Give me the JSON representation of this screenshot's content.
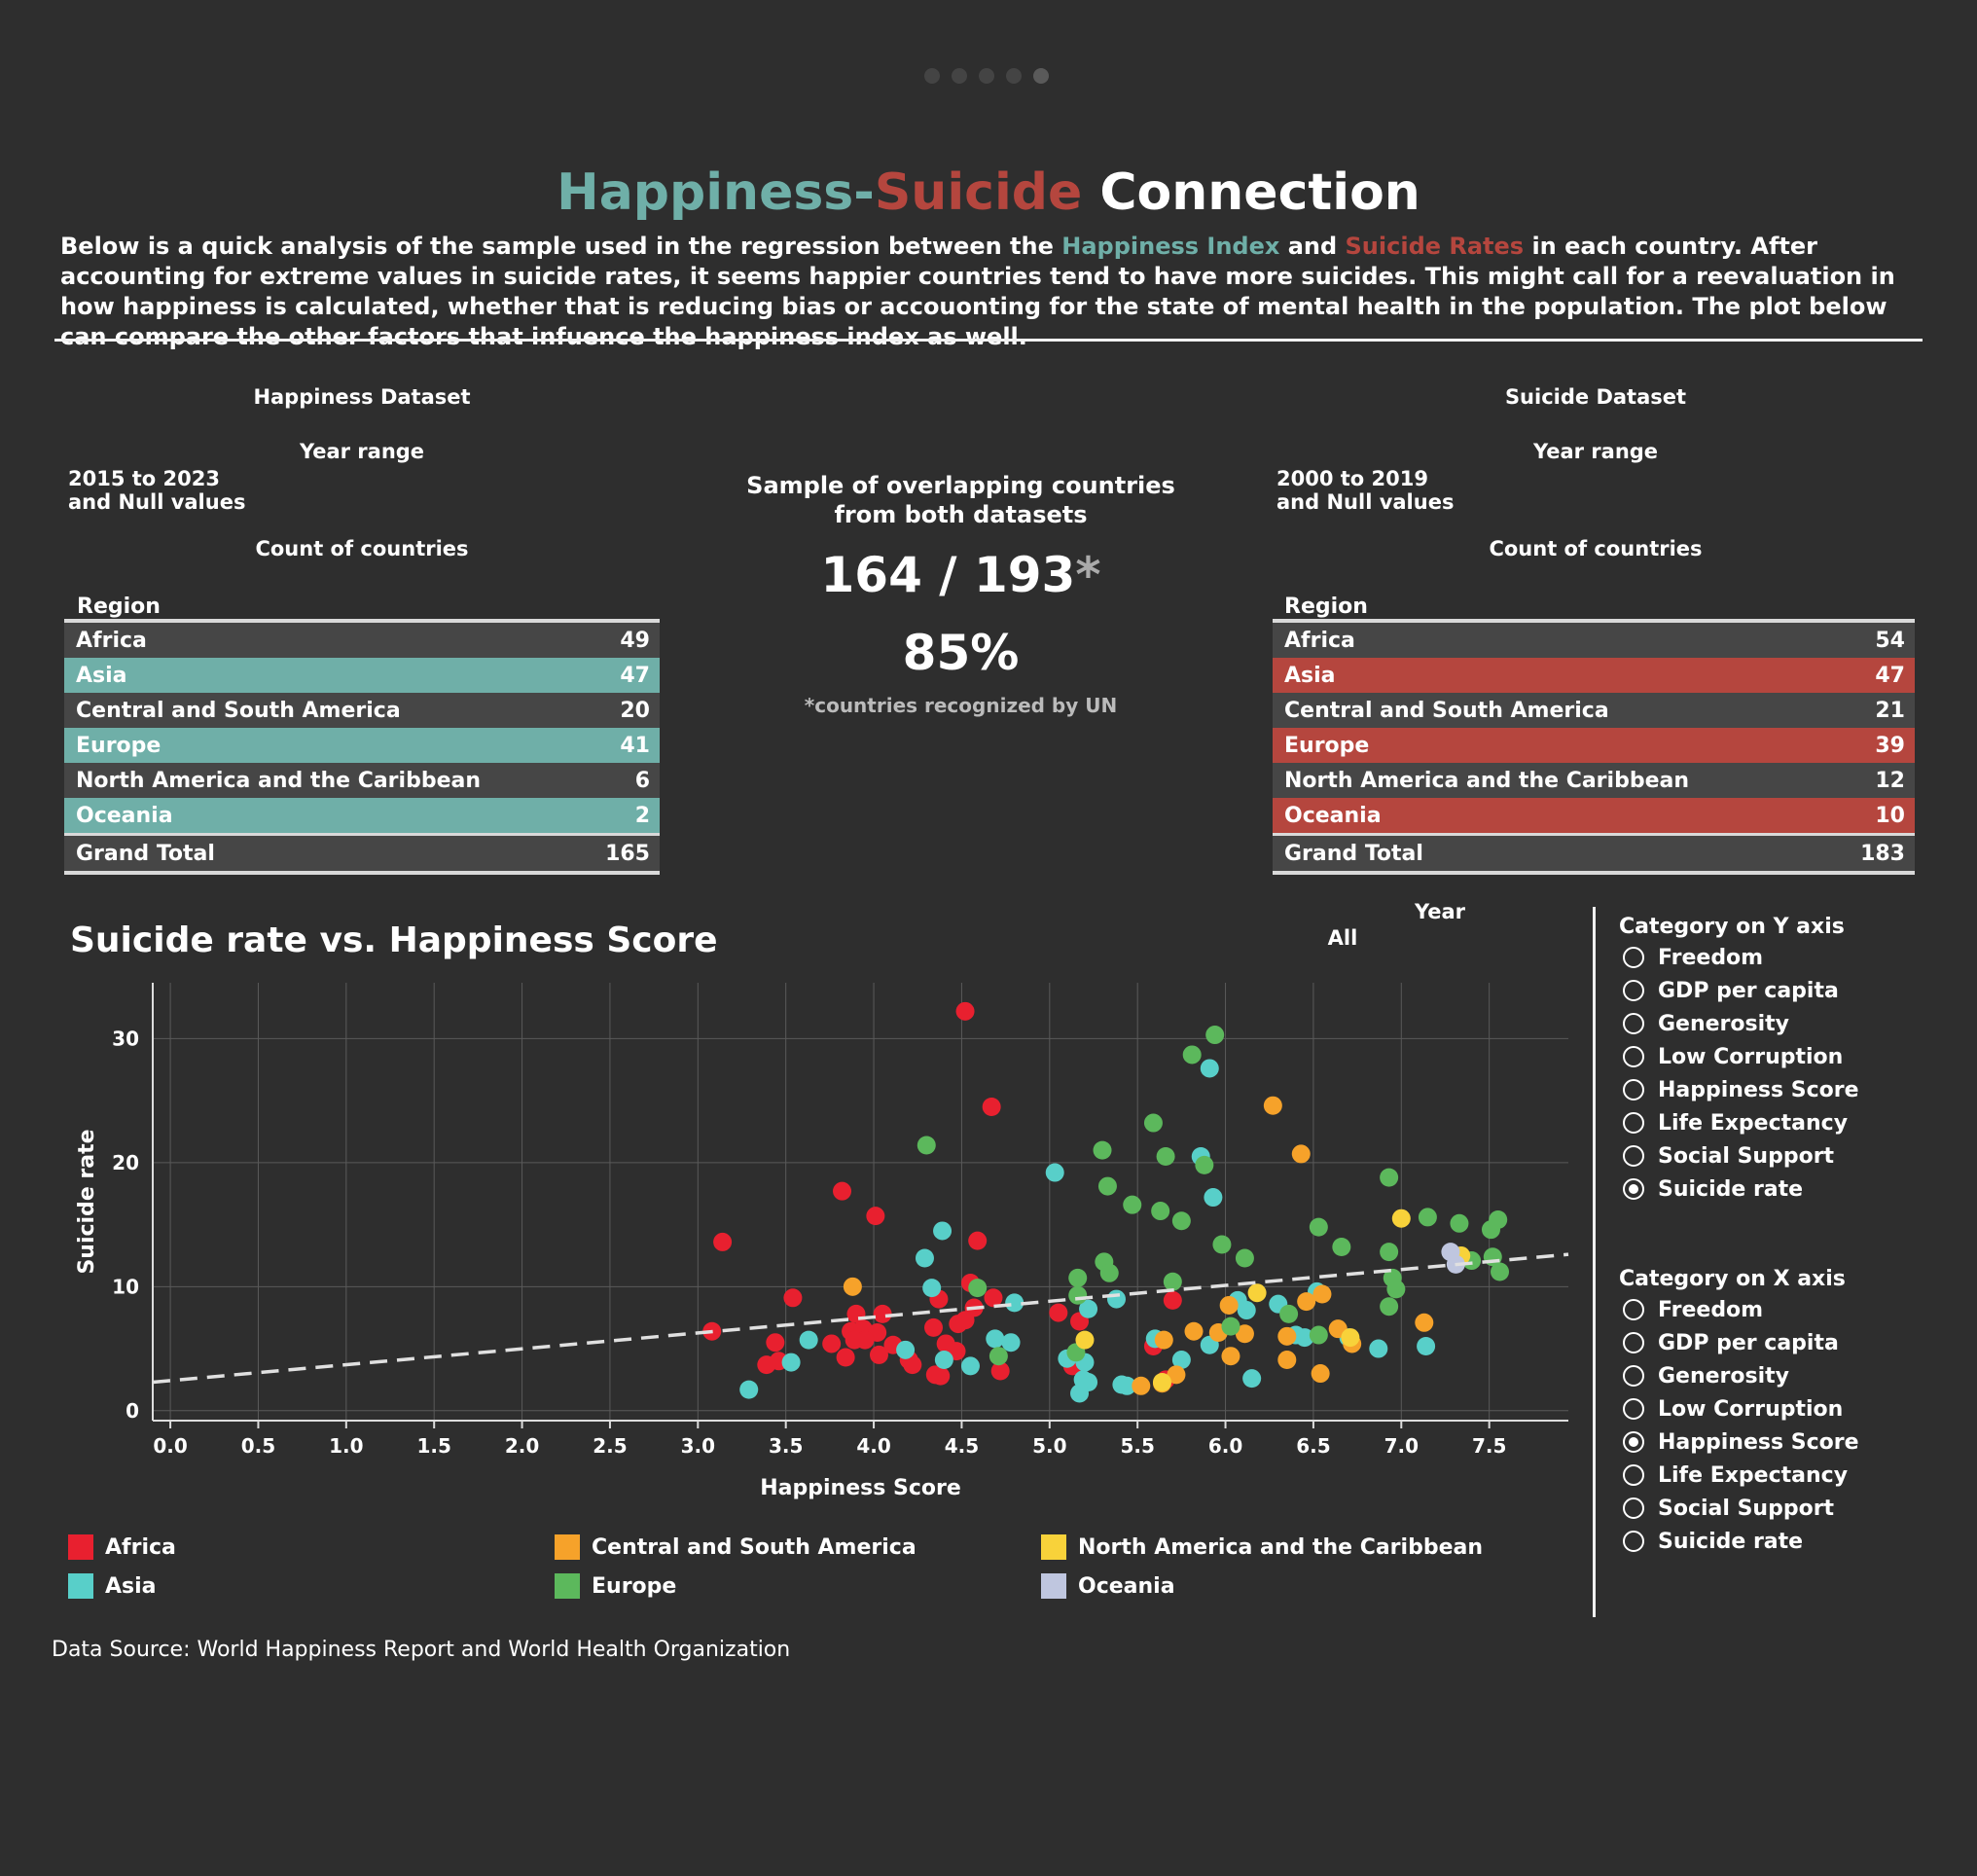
{
  "pager": {
    "count": 5,
    "active_index": 4
  },
  "header": {
    "title_part1": "Happiness",
    "title_sep": "-",
    "title_part2": "Suicide",
    "title_part3": " Connection",
    "intro_pre": "Below is a quick analysis of the sample used in the regression between the ",
    "intro_hl1": "Happiness Index",
    "intro_mid": " and ",
    "intro_hl2": "Suicide Rates",
    "intro_post": " in each country. After accounting for extreme values in suicide rates, it seems happier countries tend to have more suicides. This might call for a reevaluation in how happiness is calculated, whether that is reducing bias or accouonting for the state of mental health in the population. The plot below can compare the other factors that infuence the happiness index as well."
  },
  "colors": {
    "background": "#2e2e2e",
    "happiness_teal": "#6fafa8",
    "suicide_red": "#b5463e",
    "Africa": "#e8202f",
    "Asia": "#58cfc9",
    "Central and South America": "#f6a22a",
    "Europe": "#5cb85c",
    "North America and the Caribbean": "#f8d23a",
    "Oceania": "#bfc6df"
  },
  "happiness_panel": {
    "title": "Happiness Dataset",
    "year_range_label": "Year range",
    "year_range_line1": "2015 to 2023",
    "year_range_line2": "and Null values",
    "count_label": "Count of countries",
    "region_header": "Region",
    "rows": [
      {
        "region": "Africa",
        "count": "49"
      },
      {
        "region": "Asia",
        "count": "47"
      },
      {
        "region": "Central and South America",
        "count": "20"
      },
      {
        "region": "Europe",
        "count": "41"
      },
      {
        "region": "North America and the Caribbean",
        "count": "6"
      },
      {
        "region": "Oceania",
        "count": "2"
      }
    ],
    "total_label": "Grand Total",
    "total": "165"
  },
  "suicide_panel": {
    "title": "Suicide Dataset",
    "year_range_label": "Year range",
    "year_range_line1": "2000 to 2019",
    "year_range_line2": "and Null values",
    "count_label": "Count of countries",
    "region_header": "Region",
    "rows": [
      {
        "region": "Africa",
        "count": "54"
      },
      {
        "region": "Asia",
        "count": "47"
      },
      {
        "region": "Central and South America",
        "count": "21"
      },
      {
        "region": "Europe",
        "count": "39"
      },
      {
        "region": "North America and the Caribbean",
        "count": "12"
      },
      {
        "region": "Oceania",
        "count": "10"
      }
    ],
    "total_label": "Grand Total",
    "total": "183"
  },
  "overlap": {
    "title_line1": "Sample of overlapping countries",
    "title_line2": "from both datasets",
    "ratio": "164 / 193",
    "ratio_star": "*",
    "percent": "85%",
    "footnote": "*countries recognized by UN"
  },
  "filters": {
    "year_label": "Year",
    "year_value": "All"
  },
  "y_axis_selector": {
    "title": "Category on Y axis",
    "options": [
      "Freedom",
      "GDP per capita",
      "Generosity",
      "Low Corruption",
      "Happiness Score",
      "Life Expectancy",
      "Social Support",
      "Suicide rate"
    ],
    "selected": "Suicide rate"
  },
  "x_axis_selector": {
    "title": "Category on X axis",
    "options": [
      "Freedom",
      "GDP per capita",
      "Generosity",
      "Low Corruption",
      "Happiness Score",
      "Life Expectancy",
      "Social Support",
      "Suicide rate"
    ],
    "selected": "Happiness Score"
  },
  "legend": [
    "Africa",
    "Central and South America",
    "North America and the Caribbean",
    "Asia",
    "Europe",
    "Oceania"
  ],
  "source": "Data Source: World Happiness Report and World Health Organization",
  "chart_data": {
    "type": "scatter",
    "title": "Suicide rate vs. Happiness Score",
    "xlabel": "Happiness Score",
    "ylabel": "Suicide rate",
    "xlim": [
      -0.1,
      7.95
    ],
    "ylim": [
      -0.8,
      34.5
    ],
    "x_ticks": [
      "0.0",
      "0.5",
      "1.0",
      "1.5",
      "2.0",
      "2.5",
      "3.0",
      "3.5",
      "4.0",
      "4.5",
      "5.0",
      "5.5",
      "6.0",
      "6.5",
      "7.0",
      "7.5"
    ],
    "y_ticks": [
      "0",
      "10",
      "20",
      "30"
    ],
    "grid": true,
    "trendline": {
      "x": [
        -0.1,
        7.95
      ],
      "y": [
        2.3,
        12.6
      ]
    },
    "series": [
      {
        "name": "Africa",
        "points": [
          [
            4.52,
            32.2
          ],
          [
            4.67,
            24.5
          ],
          [
            3.82,
            17.7
          ],
          [
            4.01,
            15.7
          ],
          [
            3.14,
            13.6
          ],
          [
            4.59,
            13.7
          ],
          [
            4.55,
            10.3
          ],
          [
            3.54,
            9.1
          ],
          [
            4.37,
            9.0
          ],
          [
            4.68,
            9.1
          ],
          [
            4.57,
            8.3
          ],
          [
            4.05,
            7.8
          ],
          [
            3.9,
            7.8
          ],
          [
            5.05,
            7.9
          ],
          [
            5.17,
            7.2
          ],
          [
            3.08,
            6.4
          ],
          [
            3.87,
            6.4
          ],
          [
            3.94,
            6.6
          ],
          [
            4.02,
            6.3
          ],
          [
            4.34,
            6.7
          ],
          [
            4.48,
            7.0
          ],
          [
            4.52,
            7.3
          ],
          [
            3.76,
            5.4
          ],
          [
            3.95,
            5.7
          ],
          [
            4.11,
            5.3
          ],
          [
            3.44,
            5.5
          ],
          [
            4.41,
            5.4
          ],
          [
            4.47,
            4.8
          ],
          [
            5.59,
            5.2
          ],
          [
            3.84,
            4.3
          ],
          [
            4.03,
            4.5
          ],
          [
            4.2,
            4.1
          ],
          [
            3.46,
            4.0
          ],
          [
            3.39,
            3.7
          ],
          [
            4.22,
            3.7
          ],
          [
            5.13,
            3.6
          ],
          [
            4.35,
            2.9
          ],
          [
            4.38,
            2.8
          ],
          [
            4.72,
            3.2
          ],
          [
            5.66,
            2.5
          ],
          [
            5.7,
            8.9
          ],
          [
            3.89,
            5.7
          ]
        ]
      },
      {
        "name": "Asia",
        "points": [
          [
            5.91,
            27.6
          ],
          [
            5.03,
            19.2
          ],
          [
            5.86,
            20.5
          ],
          [
            5.93,
            17.2
          ],
          [
            4.39,
            14.5
          ],
          [
            4.29,
            12.3
          ],
          [
            4.33,
            9.9
          ],
          [
            4.8,
            8.7
          ],
          [
            5.38,
            9.0
          ],
          [
            5.22,
            8.2
          ],
          [
            4.18,
            4.9
          ],
          [
            4.4,
            4.1
          ],
          [
            4.55,
            3.6
          ],
          [
            4.69,
            5.8
          ],
          [
            4.78,
            5.5
          ],
          [
            3.63,
            5.7
          ],
          [
            3.53,
            3.9
          ],
          [
            3.29,
            1.7
          ],
          [
            5.1,
            4.2
          ],
          [
            5.2,
            3.9
          ],
          [
            5.22,
            2.3
          ],
          [
            5.17,
            1.4
          ],
          [
            5.41,
            2.1
          ],
          [
            5.44,
            2.0
          ],
          [
            5.6,
            5.8
          ],
          [
            5.75,
            4.1
          ],
          [
            5.91,
            5.3
          ],
          [
            6.07,
            8.9
          ],
          [
            6.12,
            8.1
          ],
          [
            6.15,
            2.6
          ],
          [
            6.3,
            8.6
          ],
          [
            6.4,
            6.1
          ],
          [
            6.45,
            5.9
          ],
          [
            6.52,
            9.6
          ],
          [
            6.87,
            5.0
          ],
          [
            7.14,
            5.2
          ],
          [
            6.7,
            5.9
          ],
          [
            5.19,
            2.5
          ]
        ]
      },
      {
        "name": "Central and South America",
        "points": [
          [
            6.27,
            24.6
          ],
          [
            6.43,
            20.7
          ],
          [
            3.88,
            10.0
          ],
          [
            6.02,
            8.5
          ],
          [
            5.65,
            5.7
          ],
          [
            5.82,
            6.4
          ],
          [
            5.96,
            6.3
          ],
          [
            6.11,
            6.2
          ],
          [
            6.35,
            6.0
          ],
          [
            6.46,
            8.8
          ],
          [
            6.64,
            6.6
          ],
          [
            6.72,
            5.4
          ],
          [
            6.03,
            4.4
          ],
          [
            6.35,
            4.1
          ],
          [
            5.52,
            2.0
          ],
          [
            5.72,
            2.9
          ],
          [
            6.54,
            3.0
          ],
          [
            7.13,
            7.1
          ],
          [
            5.64,
            2.2
          ],
          [
            6.55,
            9.4
          ]
        ]
      },
      {
        "name": "Europe",
        "points": [
          [
            5.94,
            30.3
          ],
          [
            5.81,
            28.7
          ],
          [
            5.59,
            23.2
          ],
          [
            4.3,
            21.4
          ],
          [
            5.3,
            21.0
          ],
          [
            5.66,
            20.5
          ],
          [
            5.88,
            19.8
          ],
          [
            6.93,
            18.8
          ],
          [
            5.33,
            18.1
          ],
          [
            5.47,
            16.6
          ],
          [
            5.63,
            16.1
          ],
          [
            5.75,
            15.3
          ],
          [
            7.15,
            15.6
          ],
          [
            7.33,
            15.1
          ],
          [
            7.55,
            15.4
          ],
          [
            7.51,
            14.6
          ],
          [
            6.53,
            14.8
          ],
          [
            5.98,
            13.4
          ],
          [
            6.66,
            13.2
          ],
          [
            6.11,
            12.3
          ],
          [
            5.31,
            12.0
          ],
          [
            5.34,
            11.1
          ],
          [
            7.4,
            12.1
          ],
          [
            7.52,
            12.4
          ],
          [
            7.56,
            11.2
          ],
          [
            6.93,
            12.8
          ],
          [
            5.16,
            10.7
          ],
          [
            5.7,
            10.4
          ],
          [
            6.95,
            10.7
          ],
          [
            6.97,
            9.8
          ],
          [
            4.59,
            9.9
          ],
          [
            5.16,
            9.3
          ],
          [
            6.36,
            7.8
          ],
          [
            6.93,
            8.4
          ],
          [
            6.03,
            6.8
          ],
          [
            6.53,
            6.1
          ],
          [
            4.71,
            4.4
          ],
          [
            5.15,
            4.7
          ]
        ]
      },
      {
        "name": "North America and the Caribbean",
        "points": [
          [
            7.0,
            15.5
          ],
          [
            7.34,
            12.5
          ],
          [
            6.18,
            9.5
          ],
          [
            5.2,
            5.7
          ],
          [
            5.64,
            2.3
          ],
          [
            6.71,
            5.9
          ]
        ]
      },
      {
        "name": "Oceania",
        "points": [
          [
            7.28,
            12.8
          ],
          [
            7.31,
            11.8
          ]
        ]
      }
    ]
  }
}
